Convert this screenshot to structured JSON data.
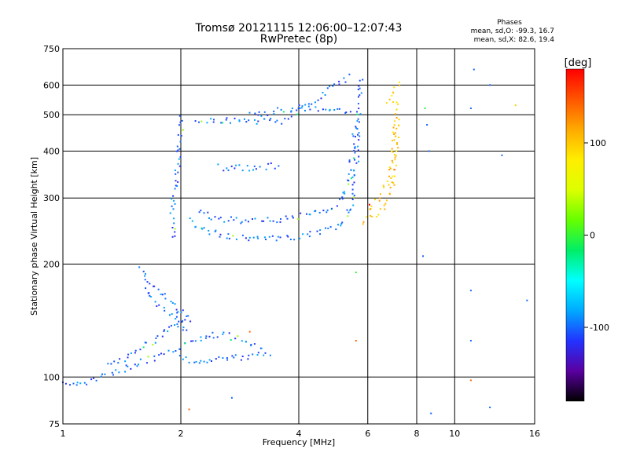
{
  "header": {
    "title": "Tromsø 20121115 12:06:00–12:07:43",
    "subtitle": "RwPretec (8p)",
    "phases_title": "Phases",
    "phases_line1": "mean, sd,O: -99.3, 16.7",
    "phases_line2": "mean, sd,X:  82.6, 19.4"
  },
  "colorbar": {
    "unit": "[deg]",
    "ticks": [
      {
        "value": 100,
        "label": "100"
      },
      {
        "value": 0,
        "label": "0"
      },
      {
        "value": -100,
        "label": "-100"
      }
    ],
    "range": [
      -180,
      180
    ],
    "colors": [
      "#000000",
      "#5a00a0",
      "#2233ff",
      "#00aaff",
      "#00ffff",
      "#00ee66",
      "#66ff00",
      "#ddff00",
      "#ffee00",
      "#ffaa00",
      "#ff5500",
      "#ff0000"
    ]
  },
  "chart_data": {
    "type": "scatter",
    "title": "Tromsø 20121115 12:06:00–12:07:43",
    "subtitle": "RwPretec (8p)",
    "xlabel": "Frequency [MHz]",
    "ylabel": "Stationary phase Virtual Height [km]",
    "xscale": "log",
    "yscale": "log",
    "xlim": [
      1,
      16
    ],
    "ylim": [
      75,
      750
    ],
    "grid": true,
    "x_ticks": [
      {
        "value": 1,
        "label": "1"
      },
      {
        "value": 2,
        "label": "2"
      },
      {
        "value": 4,
        "label": "4"
      },
      {
        "value": 6,
        "label": "6"
      },
      {
        "value": 8,
        "label": "8"
      },
      {
        "value": 10,
        "label": "10"
      },
      {
        "value": 16,
        "label": "16"
      }
    ],
    "y_ticks": [
      {
        "value": 75,
        "label": "75"
      },
      {
        "value": 100,
        "label": "100"
      },
      {
        "value": 200,
        "label": "200"
      },
      {
        "value": 300,
        "label": "300"
      },
      {
        "value": 400,
        "label": "400"
      },
      {
        "value": 500,
        "label": "500"
      },
      {
        "value": 600,
        "label": "600"
      },
      {
        "value": 750,
        "label": "750"
      }
    ],
    "traces": [
      {
        "mode": "O",
        "phase": -100,
        "points": [
          [
            1.0,
            97
          ],
          [
            1.04,
            95
          ],
          [
            1.08,
            94
          ],
          [
            1.12,
            96
          ],
          [
            1.18,
            98
          ],
          [
            1.25,
            100
          ],
          [
            1.32,
            102
          ],
          [
            1.4,
            104
          ],
          [
            1.5,
            107
          ],
          [
            1.6,
            110
          ],
          [
            1.7,
            112
          ],
          [
            1.8,
            114
          ],
          [
            1.9,
            116
          ],
          [
            2.0,
            117
          ]
        ]
      },
      {
        "mode": "O",
        "phase": -100,
        "points": [
          [
            2.0,
            112
          ],
          [
            2.1,
            111
          ],
          [
            2.3,
            111
          ],
          [
            2.5,
            111
          ],
          [
            2.7,
            112
          ],
          [
            2.9,
            113
          ],
          [
            3.1,
            114
          ],
          [
            3.3,
            115
          ],
          [
            3.45,
            116
          ]
        ]
      },
      {
        "mode": "O",
        "phase": -100,
        "points": [
          [
            1.3,
            107
          ],
          [
            1.4,
            110
          ],
          [
            1.5,
            115
          ],
          [
            1.6,
            120
          ],
          [
            1.7,
            125
          ],
          [
            1.8,
            130
          ],
          [
            1.9,
            135
          ],
          [
            2.0,
            140
          ],
          [
            2.1,
            145
          ]
        ]
      },
      {
        "mode": "O",
        "phase": -100,
        "points": [
          [
            2.0,
            120
          ],
          [
            2.15,
            125
          ],
          [
            2.3,
            128
          ],
          [
            2.5,
            130
          ],
          [
            2.7,
            128
          ],
          [
            2.9,
            125
          ],
          [
            3.1,
            122
          ],
          [
            3.3,
            120
          ]
        ]
      },
      {
        "mode": "O",
        "phase": -100,
        "points": [
          [
            1.58,
            195
          ],
          [
            1.62,
            185
          ],
          [
            1.68,
            175
          ],
          [
            1.75,
            170
          ],
          [
            1.82,
            165
          ],
          [
            1.9,
            158
          ],
          [
            1.98,
            150
          ],
          [
            2.05,
            145
          ],
          [
            2.12,
            140
          ]
        ]
      },
      {
        "mode": "O",
        "phase": -100,
        "points": [
          [
            1.62,
            170
          ],
          [
            1.7,
            162
          ],
          [
            1.78,
            155
          ],
          [
            1.86,
            148
          ],
          [
            1.94,
            142
          ],
          [
            2.02,
            137
          ],
          [
            2.1,
            132
          ]
        ]
      },
      {
        "mode": "O",
        "phase": -100,
        "points": [
          [
            2.0,
            500
          ],
          [
            2.0,
            450
          ],
          [
            1.98,
            400
          ],
          [
            1.95,
            350
          ],
          [
            1.92,
            300
          ],
          [
            1.9,
            260
          ],
          [
            1.92,
            240
          ],
          [
            1.98,
            235
          ]
        ]
      },
      {
        "mode": "O",
        "phase": -100,
        "points": [
          [
            2.1,
            260
          ],
          [
            2.3,
            245
          ],
          [
            2.6,
            238
          ],
          [
            3.0,
            233
          ],
          [
            3.5,
            233
          ],
          [
            4.0,
            237
          ],
          [
            4.5,
            242
          ],
          [
            5.0,
            250
          ],
          [
            5.3,
            265
          ],
          [
            5.5,
            300
          ],
          [
            5.6,
            360
          ],
          [
            5.65,
            430
          ],
          [
            5.7,
            500
          ],
          [
            5.72,
            580
          ],
          [
            5.75,
            640
          ]
        ]
      },
      {
        "mode": "O",
        "phase": -100,
        "points": [
          [
            2.2,
            275
          ],
          [
            2.5,
            265
          ],
          [
            3.0,
            260
          ],
          [
            3.5,
            262
          ],
          [
            4.0,
            268
          ],
          [
            4.5,
            275
          ],
          [
            4.9,
            285
          ],
          [
            5.2,
            300
          ],
          [
            5.4,
            340
          ],
          [
            5.5,
            400
          ],
          [
            5.55,
            470
          ]
        ]
      },
      {
        "mode": "O",
        "phase": -100,
        "points": [
          [
            2.2,
            480
          ],
          [
            2.5,
            482
          ],
          [
            2.8,
            483
          ],
          [
            3.0,
            482
          ],
          [
            3.3,
            478
          ],
          [
            3.6,
            482
          ],
          [
            4.0,
            510
          ],
          [
            4.3,
            540
          ],
          [
            4.6,
            565
          ],
          [
            4.9,
            590
          ],
          [
            5.2,
            615
          ],
          [
            5.5,
            635
          ]
        ]
      },
      {
        "mode": "O",
        "phase": -100,
        "points": [
          [
            3.0,
            500
          ],
          [
            3.5,
            510
          ],
          [
            4.0,
            520
          ],
          [
            4.5,
            518
          ],
          [
            5.0,
            515
          ],
          [
            5.5,
            505
          ]
        ]
      },
      {
        "mode": "O",
        "phase": -100,
        "points": [
          [
            2.5,
            362
          ],
          [
            2.8,
            360
          ],
          [
            3.1,
            362
          ],
          [
            3.4,
            365
          ],
          [
            3.6,
            368
          ]
        ]
      },
      {
        "mode": "X",
        "phase": 100,
        "points": [
          [
            5.8,
            258
          ],
          [
            6.0,
            262
          ],
          [
            6.2,
            268
          ],
          [
            6.4,
            275
          ],
          [
            6.6,
            285
          ],
          [
            6.8,
            300
          ],
          [
            6.95,
            330
          ],
          [
            7.05,
            370
          ],
          [
            7.1,
            420
          ],
          [
            7.12,
            470
          ],
          [
            7.1,
            520
          ],
          [
            7.05,
            560
          ]
        ]
      },
      {
        "mode": "X",
        "phase": 100,
        "points": [
          [
            6.0,
            280
          ],
          [
            6.2,
            290
          ],
          [
            6.4,
            300
          ],
          [
            6.6,
            315
          ],
          [
            6.8,
            340
          ],
          [
            6.95,
            380
          ],
          [
            7.0,
            430
          ],
          [
            7.0,
            480
          ]
        ]
      },
      {
        "mode": "X",
        "phase": 100,
        "points": [
          [
            6.7,
            545
          ],
          [
            6.9,
            565
          ],
          [
            7.1,
            590
          ],
          [
            7.25,
            620
          ]
        ]
      }
    ],
    "isolated_points": [
      {
        "x": 8.4,
        "y": 520,
        "phase": 0
      },
      {
        "x": 8.5,
        "y": 470,
        "phase": -100
      },
      {
        "x": 8.6,
        "y": 400,
        "phase": -100
      },
      {
        "x": 8.3,
        "y": 210,
        "phase": -100
      },
      {
        "x": 8.7,
        "y": 80,
        "phase": -100
      },
      {
        "x": 11.2,
        "y": 660,
        "phase": -100
      },
      {
        "x": 12.3,
        "y": 600,
        "phase": -100
      },
      {
        "x": 11.0,
        "y": 520,
        "phase": -100
      },
      {
        "x": 13.2,
        "y": 390,
        "phase": -100
      },
      {
        "x": 14.3,
        "y": 530,
        "phase": 100
      },
      {
        "x": 15.3,
        "y": 160,
        "phase": -100
      },
      {
        "x": 11.0,
        "y": 170,
        "phase": -100
      },
      {
        "x": 11.0,
        "y": 125,
        "phase": -100
      },
      {
        "x": 12.3,
        "y": 83,
        "phase": -100
      },
      {
        "x": 11.0,
        "y": 98,
        "phase": 140
      },
      {
        "x": 2.7,
        "y": 88,
        "phase": -100
      },
      {
        "x": 2.1,
        "y": 82,
        "phase": 140
      },
      {
        "x": 5.6,
        "y": 190,
        "phase": 0
      },
      {
        "x": 5.6,
        "y": 125,
        "phase": 140
      },
      {
        "x": 3.0,
        "y": 132,
        "phase": 140
      }
    ]
  }
}
